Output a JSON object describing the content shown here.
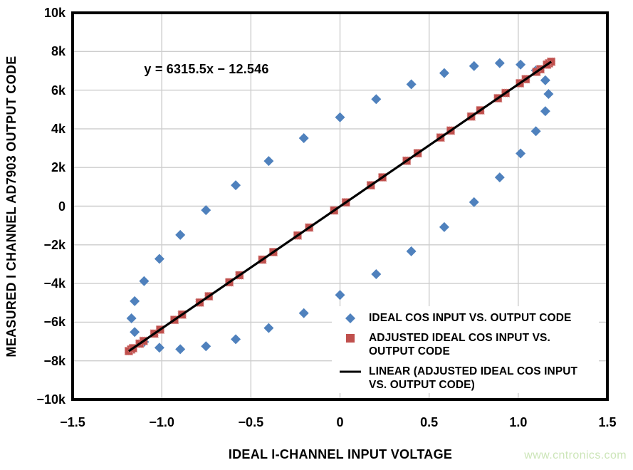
{
  "equation": "y = 6315.5x − 12.546",
  "watermark": "www.cntronics.com",
  "axes": {
    "x": {
      "title": "IDEAL I-CHANNEL INPUT VOLTAGE",
      "tick_labels": [
        "−1.5",
        "−1.0",
        "−0.5",
        "0",
        "0.5",
        "1.0",
        "1.5"
      ],
      "tick_values": [
        -1.5,
        -1.0,
        -0.5,
        0,
        0.5,
        1.0,
        1.5
      ],
      "range": [
        -1.5,
        1.5
      ]
    },
    "y": {
      "title": "MEASURED I CHANNEL AD7903 OUTPUT CODE",
      "tick_labels": [
        "10k",
        "8k",
        "6k",
        "4k",
        "2k",
        "0",
        "−2k",
        "−4k",
        "−6k",
        "−8k",
        "−10k"
      ],
      "tick_values": [
        10000,
        8000,
        6000,
        4000,
        2000,
        0,
        -2000,
        -4000,
        -6000,
        -8000,
        -10000
      ],
      "range": [
        -10000,
        10000
      ]
    }
  },
  "legend": {
    "items": [
      {
        "marker": "diamond",
        "lines": [
          "IDEAL COS INPUT VS. OUTPUT CODE"
        ]
      },
      {
        "marker": "square",
        "lines": [
          "ADJUSTED IDEAL COS INPUT VS.",
          "OUTPUT CODE"
        ]
      },
      {
        "marker": "line",
        "lines": [
          "LINEAR (ADJUSTED IDEAL COS INPUT",
          "VS. OUTPUT CODE)"
        ]
      }
    ]
  },
  "colors": {
    "diamond_series": "#4F81BD",
    "square_series": "#C0504D",
    "square_edge": "#D99694",
    "trendline": "#000000",
    "gridline": "#CDCDCD",
    "axis": "#000000",
    "watermark": "#CCE5B8"
  },
  "chart_data": {
    "type": "scatter",
    "title": "",
    "xlabel": "IDEAL I-CHANNEL INPUT VOLTAGE",
    "ylabel": "MEASURED I CHANNEL AD7903 OUTPUT CODE",
    "xlim": [
      -1.5,
      1.5
    ],
    "ylim": [
      -10000,
      10000
    ],
    "x_tick_step": 0.5,
    "y_tick_step": 2000,
    "grid": true,
    "legend_position": "inside-lower-right",
    "annotation": "y = 6315.5x − 12.546",
    "series": [
      {
        "name": "IDEAL COS INPUT VS. OUTPUT CODE",
        "type": "scatter",
        "marker": "diamond",
        "color": "#4F81BD",
        "points": [
          [
            1.17,
            5799
          ],
          [
            1.152,
            6509
          ],
          [
            1.099,
            7022
          ],
          [
            1.013,
            7321
          ],
          [
            0.896,
            7397
          ],
          [
            0.752,
            7249
          ],
          [
            0.585,
            6881
          ],
          [
            0.4,
            6303
          ],
          [
            0.203,
            5534
          ],
          [
            0.0,
            4596
          ],
          [
            -0.203,
            3519
          ],
          [
            -0.4,
            2335
          ],
          [
            -0.585,
            1081
          ],
          [
            -0.752,
            -207
          ],
          [
            -0.896,
            -1488
          ],
          [
            -1.013,
            -2724
          ],
          [
            -1.099,
            -3878
          ],
          [
            -1.152,
            -4913
          ],
          [
            -1.17,
            -5799
          ],
          [
            -1.152,
            -6509
          ],
          [
            -1.099,
            -7022
          ],
          [
            -1.013,
            -7321
          ],
          [
            -0.896,
            -7397
          ],
          [
            -0.752,
            -7249
          ],
          [
            -0.585,
            -6881
          ],
          [
            -0.4,
            -6303
          ],
          [
            -0.203,
            -5534
          ],
          [
            0.0,
            -4596
          ],
          [
            0.203,
            -3519
          ],
          [
            0.4,
            -2335
          ],
          [
            0.585,
            -1081
          ],
          [
            0.752,
            207
          ],
          [
            0.896,
            1488
          ],
          [
            1.013,
            2724
          ],
          [
            1.099,
            3878
          ],
          [
            1.152,
            4913
          ]
        ]
      },
      {
        "name": "ADJUSTED IDEAL COS INPUT VS. OUTPUT CODE",
        "type": "scatter",
        "marker": "square",
        "color": "#C0504D",
        "points": [
          [
            0.929,
            5854
          ],
          [
            1.042,
            6568
          ],
          [
            1.124,
            7086
          ],
          [
            1.172,
            7389
          ],
          [
            1.185,
            7471
          ],
          [
            1.161,
            7320
          ],
          [
            1.102,
            6947
          ],
          [
            1.009,
            6360
          ],
          [
            0.886,
            5583
          ],
          [
            0.736,
            4636
          ],
          [
            0.564,
            3549
          ],
          [
            0.374,
            2349
          ],
          [
            0.173,
            1080
          ],
          [
            -0.033,
            -221
          ],
          [
            -0.238,
            -1516
          ],
          [
            -0.436,
            -2766
          ],
          [
            -0.621,
            -3935
          ],
          [
            -0.787,
            -4983
          ],
          [
            -0.929,
            -5880
          ],
          [
            -1.042,
            -6593
          ],
          [
            -1.124,
            -7111
          ],
          [
            -1.172,
            -7414
          ],
          [
            -1.185,
            -7496
          ],
          [
            -1.161,
            -7345
          ],
          [
            -1.102,
            -6972
          ],
          [
            -1.009,
            -6385
          ],
          [
            -0.886,
            -5608
          ],
          [
            -0.736,
            -4661
          ],
          [
            -0.564,
            -3574
          ],
          [
            -0.374,
            -2375
          ],
          [
            -0.173,
            -1105
          ],
          [
            0.033,
            196
          ],
          [
            0.238,
            1491
          ],
          [
            0.436,
            2741
          ],
          [
            0.621,
            3909
          ],
          [
            0.787,
            4958
          ]
        ]
      },
      {
        "name": "LINEAR (ADJUSTED IDEAL COS INPUT VS. OUTPUT CODE)",
        "type": "line",
        "color": "#000000",
        "slope": 6315.5,
        "intercept": -12.546,
        "x_range": [
          -1.185,
          1.185
        ]
      }
    ]
  }
}
